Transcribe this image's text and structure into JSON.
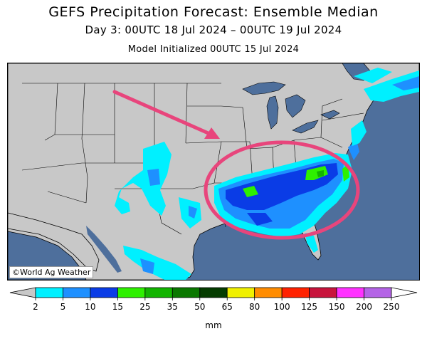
{
  "header": {
    "title": "GEFS Precipitation Forecast: Ensemble Median",
    "subtitle": "Day 3: 00UTC 18 Jul 2024 – 00UTC 19 Jul 2024",
    "initialized": "Model Initialized 00UTC 15 Jul 2024"
  },
  "map": {
    "credit": "©World Ag Weather",
    "colors": {
      "ocean": "#4e6f9c",
      "land": "#c8c8c8",
      "annotation": "#e8457c"
    }
  },
  "legend": {
    "units": "mm",
    "ticks": [
      "2",
      "5",
      "10",
      "15",
      "25",
      "35",
      "50",
      "65",
      "80",
      "100",
      "125",
      "150",
      "200",
      "250"
    ],
    "colors": [
      "#00f0ff",
      "#1e90ff",
      "#0a3ce6",
      "#2ef000",
      "#12b400",
      "#0a7800",
      "#053c00",
      "#f0f000",
      "#ff8c00",
      "#ff2200",
      "#c8143c",
      "#ff32ff",
      "#b464e6"
    ]
  }
}
